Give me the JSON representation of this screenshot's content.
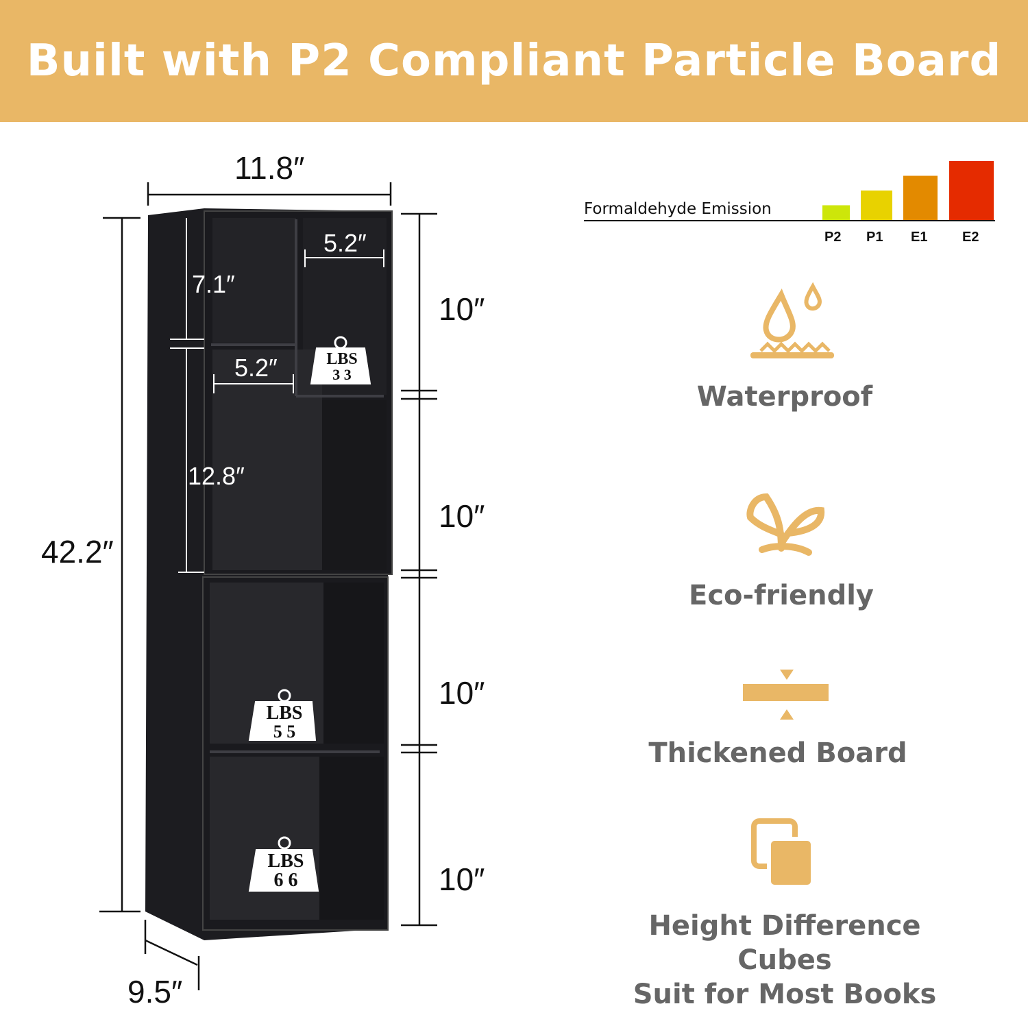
{
  "banner": {
    "title": "Built with P2 Compliant Particle Board",
    "background": "#e9b766"
  },
  "dimensions": {
    "width": "11.8″",
    "height": "42.2″",
    "depth": "9.5″",
    "top_left_height": "7.1″",
    "top_right_width": "5.2″",
    "middle_width": "5.2″",
    "left_tall_height": "12.8″",
    "section_heights": [
      "10″",
      "10″",
      "10″",
      "10″"
    ]
  },
  "weight_badges": [
    {
      "unit": "LBS",
      "value": "3 3"
    },
    {
      "unit": "LBS",
      "value": "5 5"
    },
    {
      "unit": "LBS",
      "value": "6 6"
    }
  ],
  "chart_data": {
    "type": "bar",
    "title": "Formaldehyde Emission",
    "categories": [
      "P2",
      "P1",
      "E1",
      "E2"
    ],
    "values": [
      1,
      2,
      3,
      4
    ],
    "colors": [
      "#cde60a",
      "#e8d200",
      "#e38a00",
      "#e52b00"
    ]
  },
  "features": [
    {
      "icon": "waterproof-drop-icon",
      "label": "Waterproof"
    },
    {
      "icon": "sprout-icon",
      "label": "Eco-friendly"
    },
    {
      "icon": "thickened-board-icon",
      "label": "Thickened Board"
    },
    {
      "icon": "books-icon",
      "label": "Height Difference Cubes",
      "label2": "Suit for Most Books"
    }
  ],
  "accent": "#e9b766"
}
